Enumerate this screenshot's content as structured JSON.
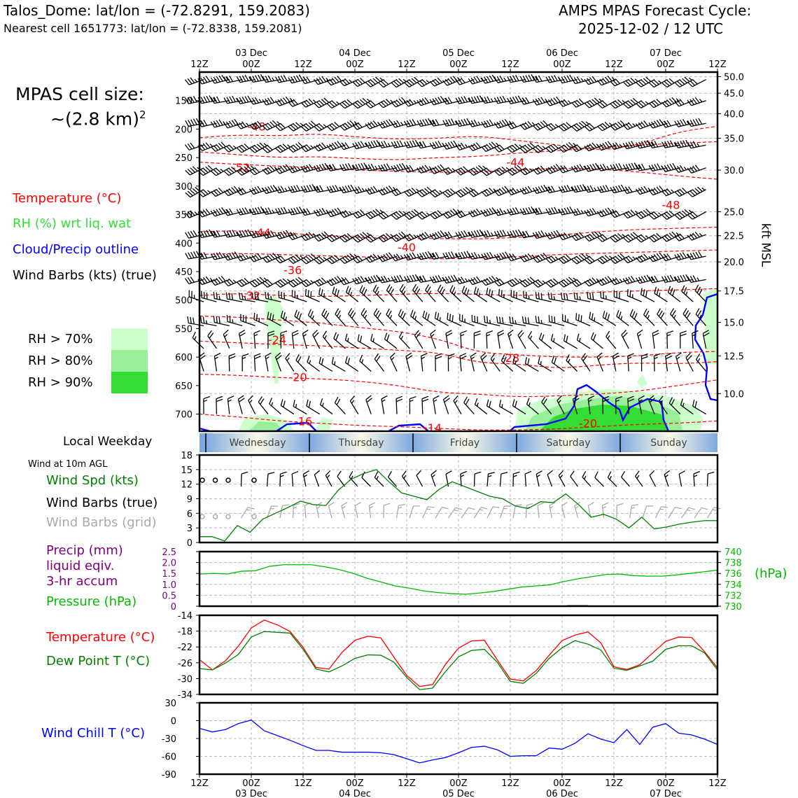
{
  "header": {
    "station_line": "Talos_Dome: lat/lon = (-72.8291, 159.2083)",
    "cell_line": "Nearest cell 1651773: lat/lon = (-72.8338, 159.2081)",
    "cycle_line1": "AMPS MPAS Forecast Cycle:",
    "cycle_line2": "2025-12-02 / 12 UTC"
  },
  "legend": {
    "cell_size_label": "MPAS cell size:",
    "cell_size_value": "~(2.8 km)",
    "cell_size_exp": "2",
    "temperature": "Temperature (°C)",
    "rh": "RH (%) wrt liq. wat",
    "cloud": "Cloud/Precip outline",
    "wind_barbs": "Wind Barbs (kts) (true)",
    "rh70": "RH > 70%",
    "rh80": "RH > 80%",
    "rh90": "RH > 90%",
    "local_weekday": "Local Weekday",
    "wind_10m": "Wind at 10m AGL",
    "wind_spd": "Wind Spd (kts)",
    "barbs_true": "Wind Barbs (true)",
    "barbs_grid": "Wind Barbs (grid)",
    "precip1": "Precip (mm)",
    "precip2": "liquid eqiv.",
    "precip3": "3-hr accum",
    "pressure": "Pressure (hPa)",
    "pressure_unit": "(hPa)",
    "temp2": "Temperature (°C)",
    "dewpoint": "Dew Point T (°C)",
    "windchill": "Wind Chill T (°C)",
    "kft": "kft MSL"
  },
  "colors": {
    "temperature": "#ff0000",
    "rh": "#33dd33",
    "cloud": "#0000ff",
    "wind": "#000000",
    "wind_grid": "#aaaaaa",
    "speed": "#008000",
    "precip": "#800080",
    "pressure": "#00bb00",
    "dewpoint": "#008000",
    "windchill": "#0000ff",
    "rh70": "#ccffcc",
    "rh80": "#99ee99",
    "rh90": "#33dd33",
    "weekday_blue": "#7fa8e0",
    "weekday_cream": "#fafae6"
  },
  "chart_data": [
    {
      "type": "line",
      "name": "time-height cross section",
      "x_labels_top": [
        "12Z",
        "00Z",
        "12Z",
        "00Z",
        "12Z",
        "00Z",
        "12Z",
        "00Z",
        "12Z",
        "00Z",
        "12Z"
      ],
      "date_labels": [
        "03 Dec",
        "04 Dec",
        "05 Dec",
        "06 Dec",
        "07 Dec"
      ],
      "ylabel": "Pressure (hPa)",
      "ylim": [
        730,
        100
      ],
      "yticks_left": [
        150,
        200,
        250,
        300,
        350,
        400,
        450,
        500,
        550,
        600,
        650,
        700
      ],
      "yticks_right_kft": [
        "50.0",
        "45.0",
        "40.0",
        "35.0",
        "30.0",
        "25.0",
        "22.5",
        "20.0",
        "17.5",
        "15.0",
        "12.5",
        "10.0"
      ],
      "right_tick_pressures": [
        108,
        137,
        173,
        216,
        272,
        345,
        387,
        433,
        484,
        539,
        598,
        664
      ],
      "temperature_contours": [
        {
          "level": -48,
          "p": [
            215,
            210,
            212,
            208,
            214,
            218,
            216,
            212,
            220,
            228,
            238,
            228,
            205,
            195
          ],
          "labels": [
            {
              "text": "-48",
              "t": 0.11,
              "p": 195
            },
            {
              "text": "-48",
              "t": 0.91,
              "p": 333
            }
          ]
        },
        {
          "level": -44,
          "p": [
            240,
            245,
            250,
            248,
            252,
            254,
            250,
            248,
            242,
            238,
            232,
            228,
            225,
            222
          ],
          "labels": [
            {
              "text": "-44",
              "t": 0.61,
              "p": 258
            },
            {
              "text": "-44",
              "t": 0.12,
              "p": 381
            }
          ]
        },
        {
          "level": -52,
          "p": [
            258,
            262,
            265,
            268,
            272,
            274,
            276,
            275,
            272,
            268,
            270,
            275,
            282,
            288
          ],
          "labels": [
            {
              "text": "-52",
              "t": 0.08,
              "p": 267
            }
          ]
        },
        {
          "level": -40,
          "p": [
            380,
            378,
            382,
            386,
            390,
            392,
            392,
            393,
            390,
            386,
            380,
            376,
            374,
            372
          ],
          "labels": [
            {
              "text": "-40",
              "t": 0.4,
              "p": 407
            }
          ]
        },
        {
          "level": -36,
          "p": [
            420,
            418,
            420,
            422,
            424,
            426,
            428,
            426,
            424,
            420,
            418,
            416,
            414,
            412
          ],
          "labels": [
            {
              "text": "-36",
              "t": 0.18,
              "p": 447
            }
          ]
        },
        {
          "level": -32,
          "p": [
            492,
            488,
            492,
            494,
            492,
            490,
            488,
            490,
            492,
            490,
            486,
            484,
            482,
            480
          ],
          "labels": [
            {
              "text": "-32",
              "t": 0.1,
              "p": 492
            }
          ]
        },
        {
          "level": -28,
          "p": [
            528,
            530,
            535,
            540,
            548,
            555,
            568,
            592,
            596,
            600,
            600,
            598,
            592,
            590
          ],
          "labels": [
            {
              "text": "-28",
              "t": 0.6,
              "p": 601
            }
          ]
        },
        {
          "level": -24,
          "p": [
            572,
            575,
            578,
            580,
            584,
            588,
            592,
            610,
            612,
            620,
            614,
            610,
            612,
            608
          ],
          "labels": [
            {
              "text": "-24",
              "t": 0.15,
              "p": 569
            }
          ]
        },
        {
          "level": -20,
          "p": [
            630,
            632,
            636,
            638,
            642,
            650,
            662,
            665,
            670,
            668,
            665,
            660,
            650,
            640
          ],
          "labels": [
            {
              "text": "-20",
              "t": 0.19,
              "p": 635
            },
            {
              "text": "-20",
              "t": 0.75,
              "p": 716
            }
          ]
        },
        {
          "level": -16,
          "p": [
            700,
            705,
            712,
            716,
            720,
            722,
            725,
            728,
            728,
            726,
            722,
            718,
            716,
            712
          ],
          "labels": [
            {
              "text": "-16",
              "t": 0.2,
              "p": 712
            }
          ]
        },
        {
          "level": -14,
          "p": [
            730,
            730,
            730,
            730,
            730,
            730,
            730,
            730,
            730,
            730,
            730,
            730,
            730,
            730
          ],
          "labels": [
            {
              "text": "-14",
              "t": 0.45,
              "p": 724
            }
          ]
        }
      ]
    },
    {
      "type": "line",
      "name": "10m wind speed",
      "ylabel": "Wind Spd (kts)",
      "ylim": [
        0,
        18
      ],
      "yticks": [
        0,
        3,
        6,
        9,
        12,
        15,
        18
      ],
      "series": [
        {
          "name": "Wind Spd (kts)",
          "values": [
            1.2,
            1.2,
            0.3,
            3.5,
            2.1,
            4.8,
            6,
            7.2,
            8.5,
            7.8,
            7.6,
            10.8,
            13,
            14.2,
            15,
            12.5,
            10.2,
            9.5,
            8.8,
            11,
            12.5,
            11.5,
            10.5,
            9.5,
            9,
            7.5,
            7,
            8.4,
            8.2,
            10,
            7.8,
            5.2,
            5.8,
            4.8,
            3,
            5.2,
            2.8,
            3.2,
            3.8,
            4.2,
            4.5,
            4.5
          ]
        }
      ]
    },
    {
      "type": "line",
      "name": "precip and pressure",
      "ylim_precip": [
        0,
        2.5
      ],
      "yticks_precip": [
        "0",
        "0.5",
        "1.0",
        "1.5",
        "2.0",
        "2.5"
      ],
      "ylim_pressure": [
        730,
        740
      ],
      "yticks_pressure": [
        "730",
        "732",
        "734",
        "736",
        "738",
        "740"
      ],
      "series": [
        {
          "name": "Pressure (hPa)",
          "values": [
            735.9,
            736.0,
            735.9,
            736.4,
            736.5,
            737.3,
            737.6,
            737.6,
            737.6,
            737.2,
            736.7,
            736.0,
            735.1,
            734.4,
            733.7,
            733.3,
            732.8,
            732.5,
            732.3,
            732.2,
            732.4,
            732.7,
            733.1,
            733.5,
            733.7,
            733.9,
            734.5,
            735.0,
            735.4,
            735.8,
            735.9,
            735.6,
            735.5,
            735.5,
            735.7,
            736.0,
            736.3,
            736.6
          ]
        },
        {
          "name": "Precip (mm)",
          "values": [
            0,
            0,
            0,
            0,
            0,
            0,
            0,
            0,
            0,
            0,
            0,
            0,
            0,
            0,
            0,
            0,
            0,
            0,
            0,
            0,
            0,
            0,
            0,
            0,
            0,
            0,
            0,
            0,
            0.05,
            0,
            0,
            0,
            0,
            0,
            0,
            0,
            0,
            0,
            0,
            0
          ]
        }
      ]
    },
    {
      "type": "line",
      "name": "temperature and dew point",
      "ylim": [
        -34,
        -14
      ],
      "yticks": [
        "-14",
        "-18",
        "-22",
        "-26",
        "-30",
        "-34"
      ],
      "series": [
        {
          "name": "Temperature (°C)",
          "values": [
            -25.2,
            -27.8,
            -25.5,
            -21.8,
            -17.2,
            -15.2,
            -16.4,
            -18.1,
            -22.1,
            -27.2,
            -27.6,
            -23.4,
            -20.3,
            -19.3,
            -19.7,
            -24.5,
            -29.2,
            -32.0,
            -31.5,
            -26.4,
            -22.3,
            -20.5,
            -20.3,
            -25.3,
            -30.1,
            -30.6,
            -28.0,
            -24.1,
            -20.4,
            -19.0,
            -18.2,
            -21.0,
            -27.0,
            -27.7,
            -26.5,
            -23.5,
            -20.6,
            -19.5,
            -19.6,
            -23.2,
            -27.3
          ]
        },
        {
          "name": "Dew Point T (°C)",
          "values": [
            -27.5,
            -27.8,
            -26.1,
            -23.9,
            -19.5,
            -18.1,
            -18.3,
            -18.5,
            -22.6,
            -27.6,
            -28.3,
            -26.8,
            -24.9,
            -24.0,
            -24.1,
            -25.8,
            -29.7,
            -32.8,
            -32.4,
            -28.2,
            -24.5,
            -22.9,
            -22.6,
            -25.9,
            -30.7,
            -31.2,
            -28.7,
            -24.9,
            -22.2,
            -20.4,
            -21.3,
            -22.8,
            -27.4,
            -27.9,
            -26.8,
            -25.6,
            -22.6,
            -21.7,
            -21.7,
            -23.5,
            -27.8
          ]
        }
      ]
    },
    {
      "type": "line",
      "name": "wind chill",
      "ylim": [
        -90,
        30
      ],
      "yticks": [
        "30",
        "0",
        "-30",
        "-60",
        "-90"
      ],
      "series": [
        {
          "name": "Wind Chill T (°C)",
          "values": [
            -13,
            -19,
            -15,
            -5,
            1,
            -17,
            -25,
            -33,
            -42,
            -50,
            -50,
            -53,
            -53,
            -53,
            -54,
            -57,
            -64,
            -71,
            -66,
            -62,
            -54,
            -45,
            -43,
            -49,
            -60,
            -59,
            -59,
            -46,
            -48,
            -38,
            -22,
            -31,
            -37,
            -15,
            -40,
            -11,
            -5,
            -21,
            -24,
            -31,
            -40
          ]
        }
      ]
    }
  ],
  "x_axis": {
    "hours": [
      "12Z",
      "00Z",
      "12Z",
      "00Z",
      "12Z",
      "00Z",
      "12Z",
      "00Z",
      "12Z",
      "00Z",
      "12Z"
    ],
    "dates": [
      "03 Dec",
      "04 Dec",
      "05 Dec",
      "06 Dec",
      "07 Dec"
    ]
  },
  "weekdays": [
    "Wednesday",
    "Thursday",
    "Friday",
    "Saturday",
    "Sunday"
  ]
}
